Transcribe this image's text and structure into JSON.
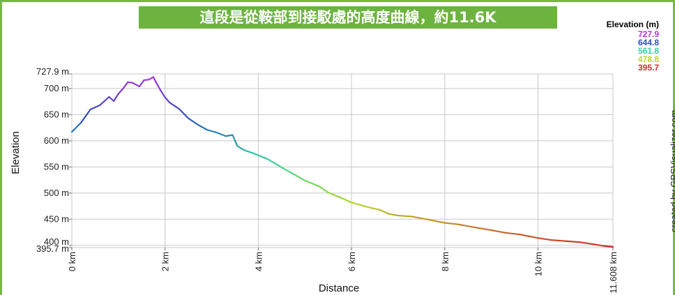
{
  "banner_title": "這段是從鞍部到接駁處的高度曲線，約11.6K",
  "credit": "created by GPSVisualizer.com",
  "legend": {
    "title": "Elevation (m)",
    "entries": [
      {
        "label": "727.9",
        "color": "#b230e0"
      },
      {
        "label": "644.8",
        "color": "#2a4fc0"
      },
      {
        "label": "561.8",
        "color": "#2fd3a0"
      },
      {
        "label": "478.8",
        "color": "#b6d62c"
      },
      {
        "label": "395.7",
        "color": "#d42a2a"
      }
    ]
  },
  "chart_data": {
    "type": "line",
    "xlabel": "Distance",
    "ylabel": "Elevation",
    "x_unit": "km",
    "y_unit": "m",
    "xlim": [
      0,
      11.608
    ],
    "ylim": [
      395.7,
      727.9
    ],
    "x_ticks": [
      0,
      2,
      4,
      6,
      8,
      10,
      11.608
    ],
    "x_tick_labels": [
      "0 km",
      "2 km",
      "4 km",
      "6 km",
      "8 km",
      "10 km",
      "11.608 km"
    ],
    "y_ticks": [
      727.9,
      700,
      650,
      600,
      550,
      500,
      450,
      400,
      395.7
    ],
    "y_tick_labels": [
      "727.9 m",
      "700 m",
      "650 m",
      "600 m",
      "550 m",
      "500 m",
      "450 m",
      "400 m",
      "395.7 m"
    ],
    "grid": true,
    "color_scale": {
      "stops": [
        395.7,
        478.8,
        561.8,
        644.8,
        727.9
      ],
      "colors": [
        "#d42a2a",
        "#b6d62c",
        "#2fd3a0",
        "#2a4fc0",
        "#b230e0"
      ]
    },
    "series": [
      {
        "x": [
          0,
          0.2,
          0.4,
          0.6,
          0.8,
          0.9,
          1.0,
          1.1,
          1.2,
          1.3,
          1.45,
          1.55,
          1.65,
          1.75,
          1.8,
          1.9,
          2.0,
          2.1,
          2.3,
          2.5,
          2.7,
          2.9,
          3.1,
          3.3,
          3.45,
          3.55,
          3.7,
          3.9,
          4.2,
          4.5,
          4.8,
          5.0,
          5.3,
          5.5,
          5.8,
          6.0,
          6.2,
          6.4,
          6.6,
          6.8,
          7.0,
          7.3,
          7.6,
          8.0,
          8.3,
          8.6,
          9.0,
          9.3,
          9.6,
          10.0,
          10.3,
          10.6,
          10.9,
          11.2,
          11.4,
          11.608
        ],
        "y": [
          617,
          635,
          660,
          668,
          684,
          676,
          690,
          700,
          712,
          711,
          704,
          716,
          717,
          722,
          713,
          697,
          683,
          673,
          661,
          643,
          631,
          621,
          616,
          609,
          611,
          590,
          582,
          576,
          565,
          549,
          534,
          524,
          513,
          501,
          490,
          482,
          477,
          472,
          468,
          460,
          457,
          455,
          450,
          443,
          440,
          435,
          429,
          424,
          421,
          414,
          410,
          408,
          406,
          402,
          399,
          397
        ]
      }
    ]
  }
}
